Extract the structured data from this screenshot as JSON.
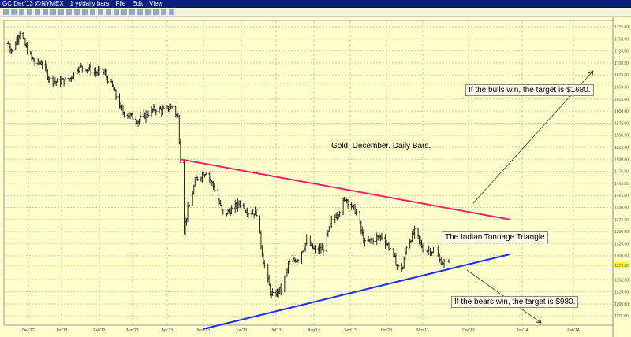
{
  "window": {
    "symbol": "GC Dec'13 @NYMEX",
    "period": "1 yr/daily bars",
    "menu": [
      "File",
      "Edit",
      "View"
    ]
  },
  "chart_data": {
    "type": "ohlc",
    "title": "Gold. December. Daily Bars.",
    "ylim": [
      1160,
      1790
    ],
    "y_ticks": [
      1775,
      1750,
      1725,
      1700,
      1675,
      1650,
      1625,
      1600,
      1575,
      1550,
      1525,
      1500,
      1475,
      1450,
      1425,
      1400,
      1375,
      1350,
      1325,
      1300,
      1279.6,
      1250,
      1225,
      1200,
      1175
    ],
    "y_tick_labels": [
      "1775.00",
      "1750.00",
      "1725.00",
      "1700.00",
      "1675.00",
      "1650.00",
      "1625.00",
      "1600.00",
      "1575.00",
      "1550.00",
      "1525.00",
      "1500.00",
      "1475.00",
      "1450.00",
      "1425.00",
      "1400.00",
      "1375.00",
      "1350.00",
      "1325.00",
      "1300.00",
      "1279.60",
      "1250.00",
      "1225.00",
      "1200.00",
      "1175.00"
    ],
    "last_price": "1279.60",
    "x_tick_labels": [
      "Dec'12",
      "Jan'13",
      "Feb'13",
      "Mar'13",
      "Apr'13",
      "May'13",
      "Jun'13",
      "Jul'13",
      "Aug'13",
      "Sep'13",
      "Oct'13",
      "Nov'13",
      "Dec'13",
      "Jan'14",
      "Feb'14"
    ],
    "closes_keypoints": [
      [
        "2012-11-12",
        1740
      ],
      [
        "2012-11-16",
        1725
      ],
      [
        "2012-11-23",
        1765
      ],
      [
        "2012-11-30",
        1725
      ],
      [
        "2012-12-07",
        1700
      ],
      [
        "2012-12-14",
        1700
      ],
      [
        "2012-12-21",
        1665
      ],
      [
        "2012-12-28",
        1660
      ],
      [
        "2013-01-07",
        1665
      ],
      [
        "2013-01-14",
        1690
      ],
      [
        "2013-01-22",
        1690
      ],
      [
        "2013-01-29",
        1680
      ],
      [
        "2013-02-05",
        1680
      ],
      [
        "2013-02-12",
        1650
      ],
      [
        "2013-02-20",
        1600
      ],
      [
        "2013-02-27",
        1590
      ],
      [
        "2013-03-06",
        1580
      ],
      [
        "2013-03-14",
        1595
      ],
      [
        "2013-03-22",
        1605
      ],
      [
        "2013-03-29",
        1600
      ],
      [
        "2013-04-05",
        1610
      ],
      [
        "2013-04-10",
        1585
      ],
      [
        "2013-04-12",
        1500
      ],
      [
        "2013-04-15",
        1355
      ],
      [
        "2013-04-18",
        1395
      ],
      [
        "2013-04-25",
        1460
      ],
      [
        "2013-05-03",
        1475
      ],
      [
        "2013-05-10",
        1440
      ],
      [
        "2013-05-17",
        1385
      ],
      [
        "2013-05-24",
        1395
      ],
      [
        "2013-05-31",
        1410
      ],
      [
        "2013-06-07",
        1390
      ],
      [
        "2013-06-14",
        1390
      ],
      [
        "2013-06-20",
        1290
      ],
      [
        "2013-06-27",
        1215
      ],
      [
        "2013-07-05",
        1230
      ],
      [
        "2013-07-12",
        1285
      ],
      [
        "2013-07-19",
        1295
      ],
      [
        "2013-07-26",
        1330
      ],
      [
        "2013-08-02",
        1310
      ],
      [
        "2013-08-09",
        1315
      ],
      [
        "2013-08-16",
        1370
      ],
      [
        "2013-08-23",
        1395
      ],
      [
        "2013-08-28",
        1420
      ],
      [
        "2013-09-06",
        1390
      ],
      [
        "2013-09-13",
        1325
      ],
      [
        "2013-09-20",
        1335
      ],
      [
        "2013-09-27",
        1340
      ],
      [
        "2013-10-04",
        1315
      ],
      [
        "2013-10-11",
        1275
      ],
      [
        "2013-10-15",
        1275
      ],
      [
        "2013-10-18",
        1320
      ],
      [
        "2013-10-25",
        1350
      ],
      [
        "2013-11-01",
        1315
      ],
      [
        "2013-11-08",
        1310
      ],
      [
        "2013-11-12",
        1290
      ],
      [
        "2013-11-15",
        1285
      ],
      [
        "2013-11-19",
        1279.6
      ]
    ],
    "trendlines": [
      {
        "name": "resistance",
        "color": "#ff1a66",
        "from": [
          "2013-04-12",
          1500
        ],
        "to": [
          "2013-12-25",
          1375
        ]
      },
      {
        "name": "support",
        "color": "#1a2eff",
        "from": [
          "2013-05-01",
          1148
        ],
        "to": [
          "2013-12-25",
          1303
        ]
      }
    ],
    "annotations": {
      "bulls": "If the bulls win, the target is $1680.",
      "triangle": "The Indian Tonnage Triangle",
      "bears": "If the bears win, the target is $980."
    }
  }
}
